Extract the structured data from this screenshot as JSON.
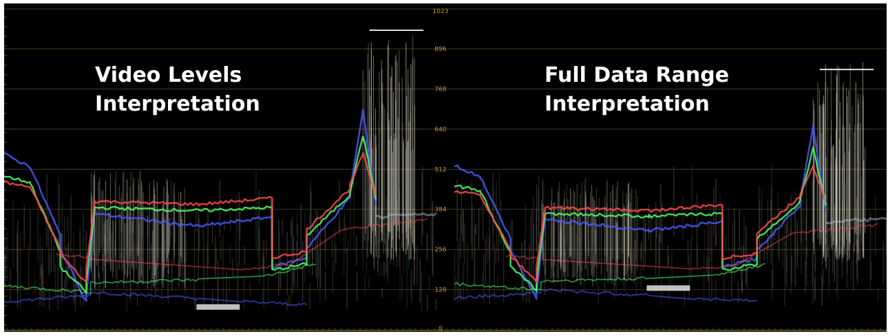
{
  "panels": [
    {
      "id": "left",
      "caption": [
        "Video Levels",
        "Interpretation"
      ]
    },
    {
      "id": "right",
      "caption": [
        "Full Data Range",
        "Interpretation"
      ]
    }
  ],
  "scale": {
    "ticks": [
      "1023",
      "896",
      "768",
      "640",
      "512",
      "384",
      "256",
      "128",
      "0"
    ],
    "values": [
      1023,
      896,
      768,
      640,
      512,
      384,
      256,
      128,
      0
    ],
    "max": 1023
  },
  "colors": {
    "background": "#000000",
    "graticule": "#6b5a22",
    "tick_label": "#c79a3a",
    "red": "#ff4a4a",
    "green": "#4cff6a",
    "blue": "#4a5cff",
    "white": "#f0f0f0"
  }
}
